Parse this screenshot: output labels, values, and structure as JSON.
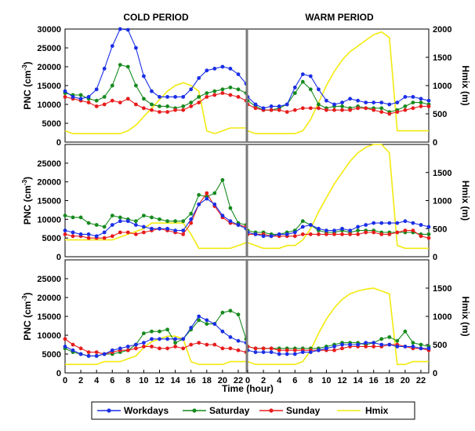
{
  "colors": {
    "workdays": "#1a2ee6",
    "saturday": "#168a1e",
    "sunday": "#e81c1c",
    "hmix": "#f2ea10",
    "frame": "#000000",
    "divider": "#7a7a7a"
  },
  "chart_data": {
    "type": "line",
    "xlabel": "Time (hour)",
    "x_ticks": [
      0,
      2,
      4,
      6,
      8,
      10,
      12,
      14,
      16,
      18,
      20,
      22
    ],
    "xlim": [
      0,
      23
    ],
    "left_ylabel": "PNC (cm-3)",
    "left_ylabel_main": "PNC (cm",
    "left_ylabel_sup": "-3",
    "left_ylabel_close": ")",
    "right_ylabel": "Hmix (m)",
    "columns": [
      "COLD PERIOD",
      "WARM PERIOD"
    ],
    "legend": [
      "Workdays",
      "Saturday",
      "Sunday",
      "Hmix"
    ],
    "rows": [
      {
        "ylim_left": [
          0,
          30000
        ],
        "left_ticks": [
          "0",
          "5000",
          "10000",
          "15000",
          "20000",
          "25000",
          "30000"
        ],
        "ylim_right": [
          0,
          2000
        ],
        "right_ticks": [
          "0",
          "500",
          "1000",
          "1500",
          "2000"
        ],
        "cold": {
          "series": [
            {
              "name": "Workdays",
              "values": [
                13500,
                12000,
                11500,
                12000,
                14000,
                19500,
                25500,
                30000,
                29800,
                25000,
                17500,
                13500,
                12000,
                12000,
                12000,
                12000,
                14000,
                17000,
                19000,
                19500,
                20000,
                19500,
                18000,
                15500
              ]
            },
            {
              "name": "Saturday",
              "values": [
                13000,
                12500,
                12500,
                11500,
                11000,
                12000,
                15000,
                20500,
                20000,
                15000,
                11500,
                10000,
                9500,
                9500,
                9000,
                9500,
                10500,
                12000,
                13000,
                13500,
                14000,
                14500,
                14000,
                13000
              ]
            },
            {
              "name": "Sunday",
              "values": [
                12000,
                11500,
                11000,
                10500,
                9500,
                10000,
                11000,
                10500,
                11500,
                10000,
                9000,
                8500,
                8000,
                8000,
                8500,
                8500,
                9500,
                10500,
                12000,
                12500,
                13000,
                12500,
                12000,
                11000
              ]
            },
            {
              "name": "Hmix",
              "values": [
                200,
                150,
                150,
                150,
                150,
                150,
                150,
                150,
                200,
                300,
                450,
                600,
                750,
                900,
                1000,
                1050,
                1000,
                900,
                200,
                150,
                200,
                250,
                250,
                250
              ]
            }
          ]
        },
        "warm": {
          "series": [
            {
              "name": "Workdays",
              "values": [
                12000,
                10000,
                9000,
                9500,
                9500,
                10000,
                14500,
                18000,
                17500,
                14000,
                11000,
                10000,
                10500,
                11500,
                11000,
                10500,
                10500,
                10500,
                10000,
                10500,
                12000,
                12000,
                11500,
                11000
              ]
            },
            {
              "name": "Saturday",
              "values": [
                11000,
                9500,
                8500,
                8500,
                9000,
                10000,
                13000,
                16000,
                14000,
                10000,
                9000,
                9500,
                9500,
                9000,
                9500,
                9000,
                9000,
                9000,
                8000,
                8500,
                9500,
                10500,
                10500,
                10000
              ]
            },
            {
              "name": "Sunday",
              "values": [
                10000,
                9000,
                8500,
                8500,
                8500,
                8000,
                8500,
                9000,
                9000,
                9000,
                8500,
                8500,
                8500,
                8500,
                9000,
                9000,
                8500,
                8000,
                7500,
                8000,
                8500,
                9000,
                9500,
                9500
              ]
            },
            {
              "name": "Hmix",
              "values": [
                200,
                150,
                150,
                150,
                150,
                150,
                150,
                200,
                400,
                700,
                1000,
                1250,
                1450,
                1600,
                1700,
                1800,
                1900,
                1950,
                1850,
                200,
                200,
                200,
                200,
                200
              ]
            }
          ]
        }
      },
      {
        "ylim_left": [
          0,
          30000
        ],
        "left_ticks": [
          "0",
          "5000",
          "10000",
          "15000",
          "20000",
          "25000"
        ],
        "ylim_right": [
          0,
          2000
        ],
        "right_ticks": [
          "0",
          "500",
          "1000",
          "1500"
        ],
        "cold": {
          "series": [
            {
              "name": "Workdays",
              "values": [
                7000,
                6500,
                6000,
                6000,
                5500,
                6500,
                8500,
                9500,
                9500,
                8500,
                8000,
                7500,
                7500,
                7500,
                7000,
                7000,
                10000,
                14000,
                15500,
                14000,
                11000,
                9500,
                8500,
                7500
              ]
            },
            {
              "name": "Saturday",
              "values": [
                11000,
                10500,
                10500,
                9000,
                8500,
                8000,
                11000,
                10500,
                10000,
                9500,
                11000,
                10500,
                10000,
                9500,
                9500,
                9500,
                11500,
                16500,
                16000,
                17000,
                20500,
                13000,
                9000,
                8500
              ]
            },
            {
              "name": "Sunday",
              "values": [
                6000,
                5500,
                5500,
                5000,
                5000,
                5000,
                5500,
                6500,
                6500,
                6000,
                6500,
                7000,
                7500,
                7000,
                6500,
                6000,
                9000,
                14000,
                17000,
                13500,
                10500,
                9000,
                8500,
                8000
              ]
            },
            {
              "name": "Hmix",
              "values": [
                300,
                300,
                300,
                300,
                300,
                300,
                300,
                350,
                400,
                450,
                500,
                600,
                600,
                600,
                600,
                600,
                400,
                150,
                150,
                150,
                150,
                150,
                200,
                250
              ]
            }
          ]
        },
        "warm": {
          "series": [
            {
              "name": "Workdays",
              "values": [
                6500,
                6000,
                5500,
                5500,
                6000,
                6000,
                6500,
                8000,
                8500,
                7500,
                7000,
                7000,
                7500,
                7000,
                8000,
                8500,
                9000,
                9000,
                9000,
                9000,
                9500,
                9000,
                8500,
                8000
              ]
            },
            {
              "name": "Saturday",
              "values": [
                7000,
                6500,
                6500,
                6000,
                6000,
                6500,
                7000,
                9500,
                8500,
                7000,
                6500,
                6500,
                7000,
                6500,
                7000,
                7000,
                7000,
                6500,
                6500,
                6500,
                6500,
                6500,
                6000,
                6000
              ]
            },
            {
              "name": "Sunday",
              "values": [
                6000,
                6000,
                6000,
                5500,
                5500,
                5500,
                5500,
                6000,
                6000,
                6000,
                6000,
                6000,
                6000,
                6000,
                6000,
                6500,
                6500,
                6000,
                6000,
                6500,
                7000,
                7000,
                5500,
                5000
              ]
            },
            {
              "name": "Hmix",
              "values": [
                250,
                200,
                150,
                150,
                150,
                200,
                200,
                300,
                500,
                800,
                1050,
                1300,
                1500,
                1700,
                1850,
                1950,
                2000,
                2000,
                1850,
                200,
                150,
                150,
                150,
                150
              ]
            }
          ]
        }
      },
      {
        "ylim_left": [
          0,
          30000
        ],
        "left_ticks": [
          "0",
          "5000",
          "10000",
          "15000",
          "20000",
          "25000"
        ],
        "ylim_right": [
          0,
          2000
        ],
        "right_ticks": [
          "0",
          "500",
          "1000",
          "1500"
        ],
        "cold": {
          "series": [
            {
              "name": "Workdays",
              "values": [
                7000,
                6000,
                5000,
                4500,
                4500,
                5000,
                6000,
                6500,
                7000,
                7500,
                8000,
                9000,
                9000,
                9000,
                9000,
                9000,
                12000,
                15000,
                14000,
                13000,
                11000,
                9500,
                8500,
                8000
              ]
            },
            {
              "name": "Saturday",
              "values": [
                6500,
                5500,
                5000,
                4500,
                4500,
                5000,
                5000,
                5500,
                6000,
                7500,
                10500,
                11000,
                11000,
                11500,
                8000,
                9000,
                11500,
                14000,
                13000,
                13000,
                16000,
                16500,
                15500,
                9000
              ]
            },
            {
              "name": "Sunday",
              "values": [
                9000,
                7500,
                6500,
                5500,
                5500,
                5000,
                5500,
                6000,
                6000,
                6500,
                7000,
                7000,
                6500,
                6500,
                7000,
                6500,
                7500,
                8000,
                7500,
                7500,
                6500,
                6500,
                6000,
                5500
              ]
            },
            {
              "name": "Hmix",
              "values": [
                150,
                150,
                150,
                150,
                150,
                200,
                200,
                200,
                250,
                300,
                450,
                550,
                600,
                650,
                650,
                600,
                200,
                150,
                150,
                150,
                150,
                200,
                200,
                200
              ]
            }
          ]
        },
        "warm": {
          "series": [
            {
              "name": "Workdays",
              "values": [
                6000,
                5500,
                5500,
                5500,
                5000,
                5000,
                5000,
                5500,
                5500,
                6000,
                6500,
                7000,
                7500,
                7500,
                7500,
                8000,
                8000,
                7500,
                7500,
                7000,
                7000,
                7000,
                6500,
                6500
              ]
            },
            {
              "name": "Saturday",
              "values": [
                7000,
                6500,
                6500,
                6500,
                6500,
                6500,
                6500,
                6500,
                6500,
                6500,
                7000,
                7500,
                8000,
                8000,
                8000,
                7500,
                8000,
                9000,
                9500,
                8500,
                11000,
                8000,
                7500,
                7000
              ]
            },
            {
              "name": "Sunday",
              "values": [
                7000,
                6500,
                6500,
                6500,
                6000,
                6000,
                6000,
                6000,
                6000,
                6000,
                6000,
                6000,
                6500,
                7000,
                7000,
                7000,
                7000,
                7000,
                7500,
                7500,
                7000,
                6500,
                6500,
                6000
              ]
            },
            {
              "name": "Hmix",
              "values": [
                200,
                150,
                150,
                150,
                150,
                150,
                150,
                200,
                400,
                700,
                950,
                1150,
                1300,
                1400,
                1450,
                1480,
                1500,
                1450,
                1400,
                150,
                150,
                200,
                200,
                200
              ]
            }
          ]
        }
      }
    ]
  }
}
